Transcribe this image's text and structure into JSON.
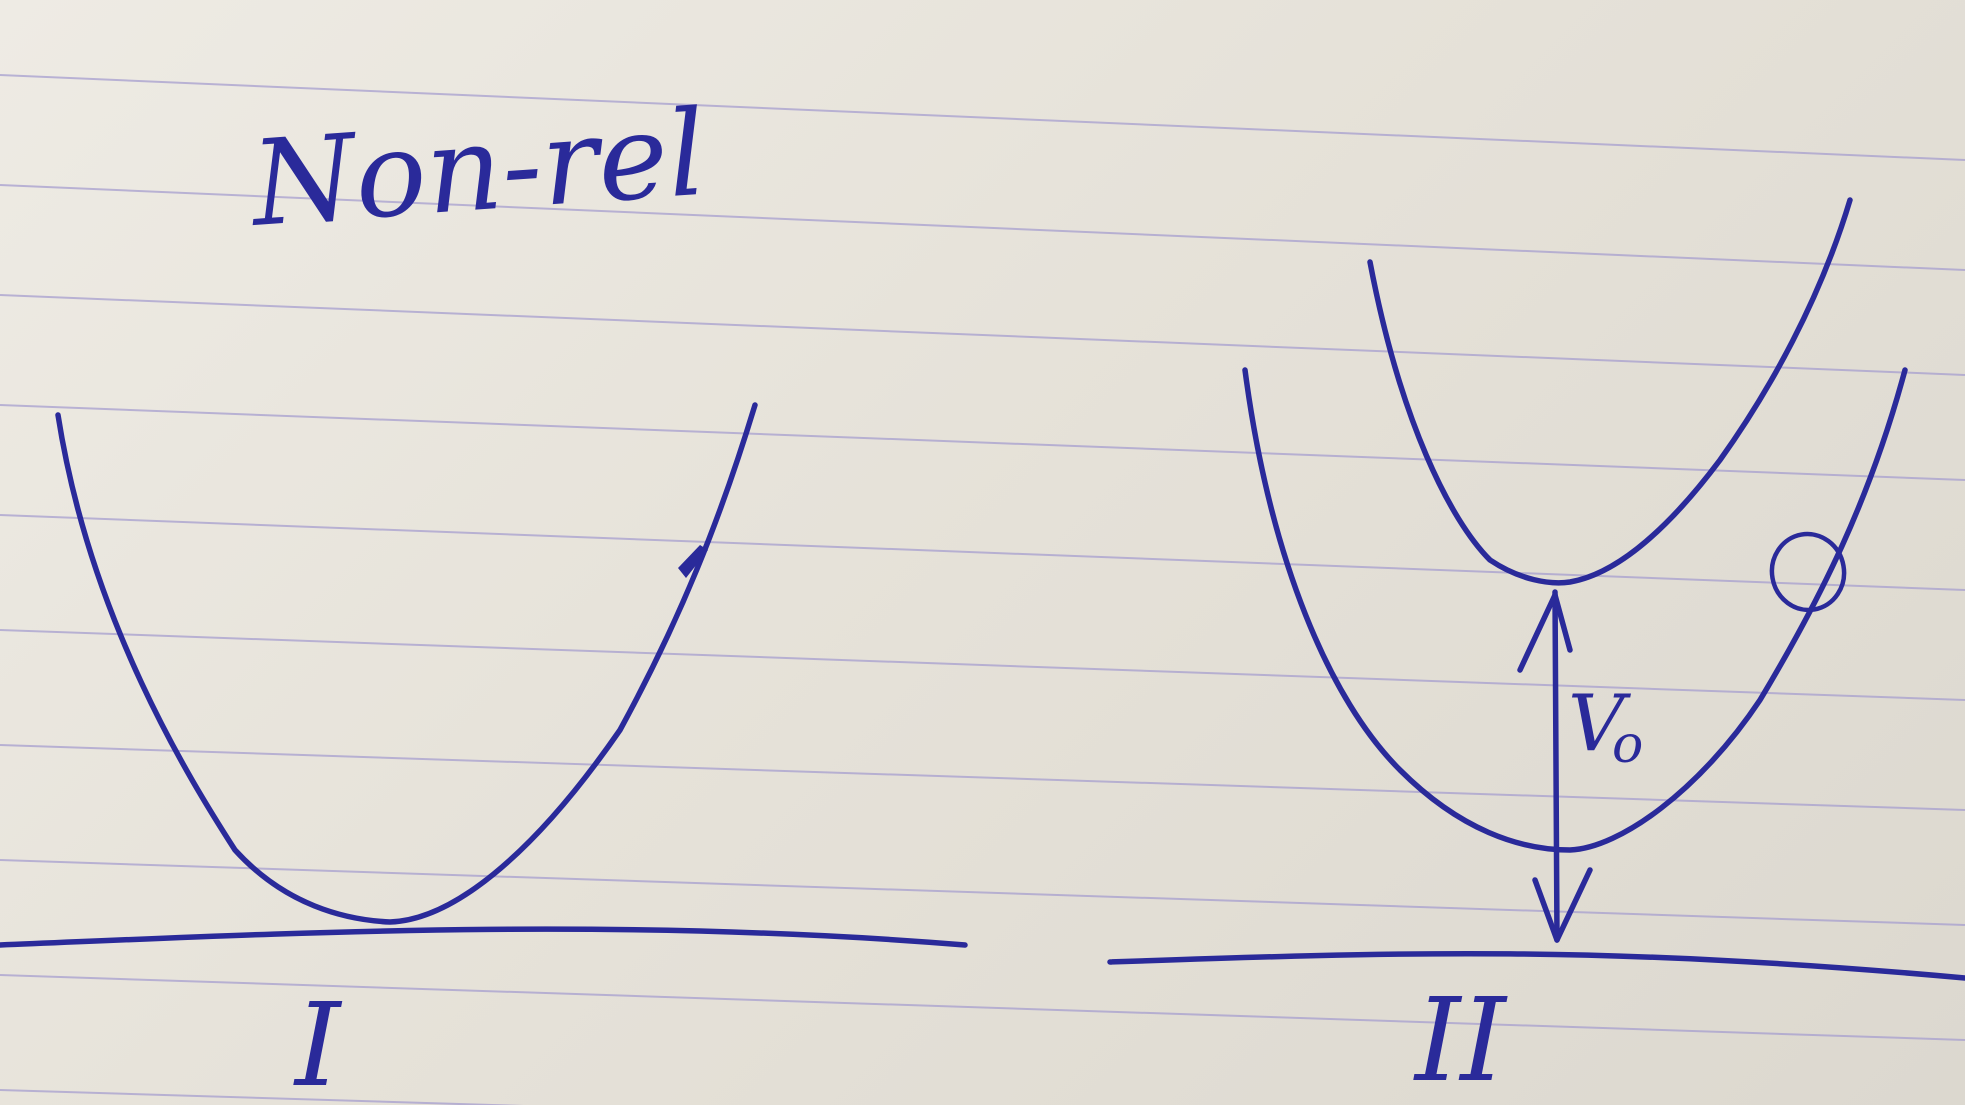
{
  "title_text": "Non-rel",
  "diagram_I": {
    "label": "I"
  },
  "diagram_II": {
    "label": "II",
    "gap_label": "V",
    "gap_label_subscript": "o"
  },
  "colors": {
    "ink": "#2a2a9a",
    "ruled_lines": "#a79fcf",
    "paper": "#eeebe4"
  }
}
